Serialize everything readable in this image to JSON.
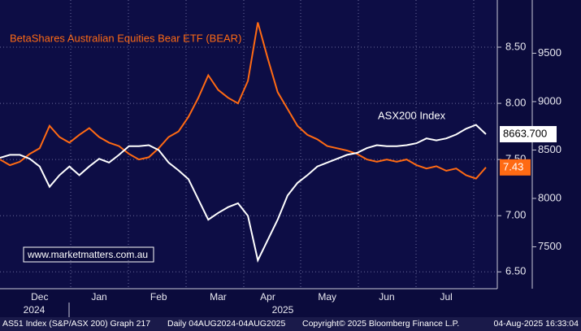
{
  "chart_data": {
    "type": "line",
    "annotations": [
      "BetaShares Australian Equities Bear ETF (BEAR)",
      "ASX200 Index",
      "www.marketmatters.com.au"
    ],
    "categories": [
      null,
      null,
      null,
      null,
      "Dec",
      null,
      null,
      null,
      null,
      null,
      "Jan",
      null,
      null,
      null,
      null,
      null,
      "Feb",
      null,
      null,
      null,
      null,
      null,
      "Mar",
      null,
      null,
      null,
      null,
      "Apr",
      null,
      null,
      null,
      null,
      null,
      "May",
      null,
      null,
      null,
      null,
      null,
      "Jun",
      null,
      null,
      null,
      null,
      null,
      "Jul",
      null,
      null,
      null,
      null
    ],
    "years": [
      "2024",
      "2025"
    ],
    "series": [
      {
        "name": "BetaShares Australian Equities Bear ETF (BEAR)",
        "color": "#ff6a13",
        "axis": "y",
        "values": [
          7.5,
          7.45,
          7.48,
          7.55,
          7.6,
          7.8,
          7.7,
          7.65,
          7.72,
          7.78,
          7.7,
          7.65,
          7.62,
          7.55,
          7.5,
          7.52,
          7.6,
          7.7,
          7.75,
          7.88,
          8.05,
          8.25,
          8.12,
          8.05,
          8.0,
          8.2,
          8.72,
          8.4,
          8.1,
          7.95,
          7.8,
          7.72,
          7.68,
          7.62,
          7.6,
          7.58,
          7.55,
          7.5,
          7.48,
          7.5,
          7.48,
          7.5,
          7.45,
          7.42,
          7.44,
          7.4,
          7.42,
          7.36,
          7.33,
          7.43
        ],
        "value_labels": [
          null,
          null,
          null,
          null,
          null,
          null,
          null,
          null,
          null,
          null,
          null,
          null,
          null,
          null,
          null,
          null,
          null,
          null,
          null,
          null,
          null,
          null,
          null,
          null,
          null,
          null,
          null,
          null,
          null,
          null,
          null,
          null,
          null,
          null,
          null,
          null,
          null,
          null,
          null,
          null,
          null,
          null,
          null,
          null,
          null,
          null,
          null,
          null,
          null,
          "7.43"
        ]
      },
      {
        "name": "ASX200 Index",
        "color": "#ffffff",
        "axis": "y2",
        "values": [
          8420,
          8450,
          8450,
          8410,
          8330,
          8120,
          8240,
          8330,
          8240,
          8330,
          8410,
          8370,
          8450,
          8540,
          8540,
          8550,
          8500,
          8370,
          8290,
          8200,
          7990,
          7780,
          7850,
          7910,
          7950,
          7820,
          7360,
          7570,
          7780,
          8030,
          8160,
          8240,
          8330,
          8370,
          8410,
          8450,
          8470,
          8520,
          8550,
          8540,
          8540,
          8550,
          8570,
          8620,
          8600,
          8620,
          8660,
          8720,
          8760,
          8663.7
        ],
        "value_labels": [
          null,
          null,
          null,
          null,
          null,
          null,
          null,
          null,
          null,
          null,
          null,
          null,
          null,
          null,
          null,
          null,
          null,
          null,
          null,
          null,
          null,
          null,
          null,
          null,
          null,
          null,
          null,
          null,
          null,
          null,
          null,
          null,
          null,
          null,
          null,
          null,
          null,
          null,
          null,
          null,
          null,
          null,
          null,
          null,
          null,
          null,
          null,
          null,
          null,
          "8663.700"
        ]
      }
    ],
    "ylim": [
      6.35,
      8.92
    ],
    "yticks": [
      {
        "value": 6.5,
        "label": "6.50"
      },
      {
        "value": 7,
        "label": "7.00"
      },
      {
        "value": 7.5,
        "label": "7.50"
      },
      {
        "value": 8,
        "label": "8.00"
      },
      {
        "value": 8.5,
        "label": "8.50"
      }
    ],
    "y2lim": [
      7067,
      10050
    ],
    "y2ticks": [
      7500,
      8000,
      8500,
      9000,
      9500
    ],
    "grid": true,
    "footer": [
      "AS51 Index (S&P/ASX 200) Graph 217",
      "Daily 04AUG2024-04AUG2025",
      "Copyright© 2025 Bloomberg Finance L.P.",
      "04-Aug-2025 16:33:04"
    ]
  }
}
